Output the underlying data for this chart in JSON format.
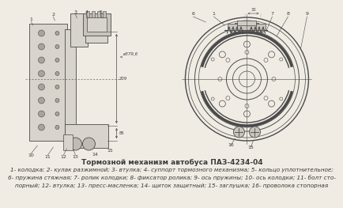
{
  "title": "Тормозной механизм автобуса ПАЗ-4234-04",
  "caption_line1": "1- колодка; 2- кулак разжимной; 3- втулка; 4- суппорт тормозного механизма; 5- кольцо уплотнительное;",
  "caption_line2": "6- пружина стяжная; 7- ролик колодки; 8- фиксатор ролика; 9- ось пружины; 10- ось колодки; 11- болт сто-",
  "caption_line3": "порный; 12- втулка; 13- пресс-масленка; 14- щиток защитный; 15- заглушка; 16- проволока стопорная",
  "bg_color": "#f0ece4",
  "text_color": "#3a3a3a",
  "line_color": "#4a4a4a",
  "title_fontsize": 6.5,
  "caption_fontsize": 5.2
}
